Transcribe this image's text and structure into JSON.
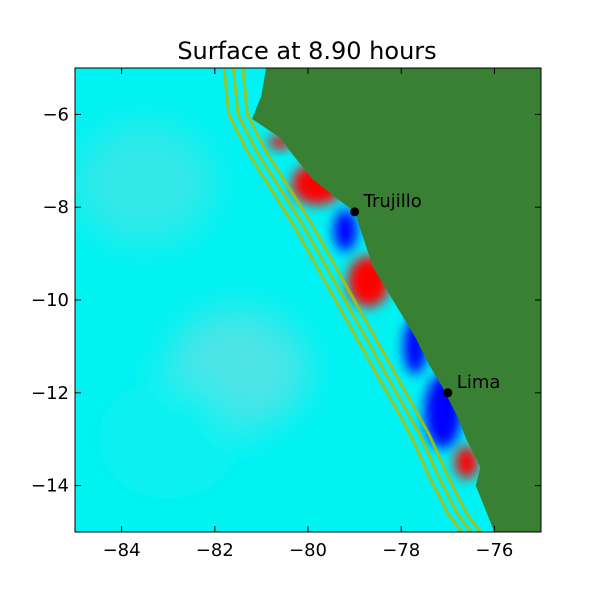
{
  "chart_data": {
    "type": "heatmap",
    "title": "Surface at 8.90 hours",
    "xlim": [
      -85,
      -75
    ],
    "ylim": [
      -15,
      -5
    ],
    "xticks": [
      -84,
      -82,
      -80,
      -78,
      -76
    ],
    "yticks": [
      -6,
      -8,
      -10,
      -12,
      -14
    ],
    "xtick_labels": [
      "−84",
      "−82",
      "−80",
      "−78",
      "−76"
    ],
    "ytick_labels": [
      "−6",
      "−8",
      "−10",
      "−12",
      "−14"
    ],
    "colors": {
      "sea": "#00f2f2",
      "land": "#3a8034",
      "shelf": "#a6c00e",
      "crest": "#ff0000",
      "trough": "#0000ff"
    },
    "points": [
      {
        "name": "Trujillo",
        "lon": -79.0,
        "lat": -8.1
      },
      {
        "name": "Lima",
        "lon": -77.0,
        "lat": -12.0
      }
    ],
    "coastline": [
      [
        -80.9,
        -5.0
      ],
      [
        -81.0,
        -5.6
      ],
      [
        -81.2,
        -6.1
      ],
      [
        -80.6,
        -6.5
      ],
      [
        -80.3,
        -6.9
      ],
      [
        -79.9,
        -7.4
      ],
      [
        -79.4,
        -7.8
      ],
      [
        -79.0,
        -8.1
      ],
      [
        -78.8,
        -8.7
      ],
      [
        -78.6,
        -9.3
      ],
      [
        -78.3,
        -9.8
      ],
      [
        -78.0,
        -10.3
      ],
      [
        -77.7,
        -10.8
      ],
      [
        -77.4,
        -11.4
      ],
      [
        -77.1,
        -11.9
      ],
      [
        -76.8,
        -12.5
      ],
      [
        -76.6,
        -13.0
      ],
      [
        -76.3,
        -13.6
      ],
      [
        -76.4,
        -14.0
      ],
      [
        -76.2,
        -14.5
      ],
      [
        -76.0,
        -15.0
      ]
    ],
    "shelf_lines": [
      [
        [
          -81.4,
          -5.0
        ],
        [
          -81.3,
          -6.0
        ],
        [
          -80.9,
          -6.8
        ],
        [
          -80.4,
          -7.6
        ],
        [
          -79.9,
          -8.4
        ],
        [
          -79.4,
          -9.3
        ],
        [
          -78.9,
          -10.2
        ],
        [
          -78.4,
          -11.1
        ],
        [
          -77.9,
          -12.0
        ],
        [
          -77.4,
          -12.9
        ],
        [
          -77.0,
          -13.8
        ],
        [
          -76.6,
          -14.6
        ],
        [
          -76.3,
          -15.0
        ]
      ],
      [
        [
          -81.6,
          -5.0
        ],
        [
          -81.5,
          -6.0
        ],
        [
          -81.1,
          -6.8
        ],
        [
          -80.6,
          -7.6
        ],
        [
          -80.1,
          -8.4
        ],
        [
          -79.6,
          -9.3
        ],
        [
          -79.1,
          -10.2
        ],
        [
          -78.6,
          -11.1
        ],
        [
          -78.1,
          -12.0
        ],
        [
          -77.6,
          -12.9
        ],
        [
          -77.2,
          -13.8
        ],
        [
          -76.8,
          -14.6
        ],
        [
          -76.5,
          -15.0
        ]
      ],
      [
        [
          -81.8,
          -5.0
        ],
        [
          -81.7,
          -6.0
        ],
        [
          -81.3,
          -6.8
        ],
        [
          -80.8,
          -7.6
        ],
        [
          -80.3,
          -8.4
        ],
        [
          -79.8,
          -9.3
        ],
        [
          -79.3,
          -10.2
        ],
        [
          -78.8,
          -11.1
        ],
        [
          -78.3,
          -12.0
        ],
        [
          -77.8,
          -12.9
        ],
        [
          -77.4,
          -13.8
        ],
        [
          -77.0,
          -14.6
        ],
        [
          -76.7,
          -15.0
        ]
      ]
    ],
    "anomalies": [
      {
        "kind": "crest",
        "lon": -80.6,
        "lat": -6.6,
        "rx": 0.25,
        "ry": 0.15
      },
      {
        "kind": "crest",
        "lon": -79.8,
        "lat": -7.5,
        "rx": 0.55,
        "ry": 0.45
      },
      {
        "kind": "trough",
        "lon": -79.2,
        "lat": -8.5,
        "rx": 0.25,
        "ry": 0.45
      },
      {
        "kind": "crest",
        "lon": -78.7,
        "lat": -9.6,
        "rx": 0.45,
        "ry": 0.55
      },
      {
        "kind": "trough",
        "lon": -77.7,
        "lat": -11.0,
        "rx": 0.25,
        "ry": 0.6
      },
      {
        "kind": "trough",
        "lon": -77.1,
        "lat": -12.4,
        "rx": 0.4,
        "ry": 0.8
      },
      {
        "kind": "crest",
        "lon": -76.6,
        "lat": -13.5,
        "rx": 0.25,
        "ry": 0.35
      }
    ]
  }
}
